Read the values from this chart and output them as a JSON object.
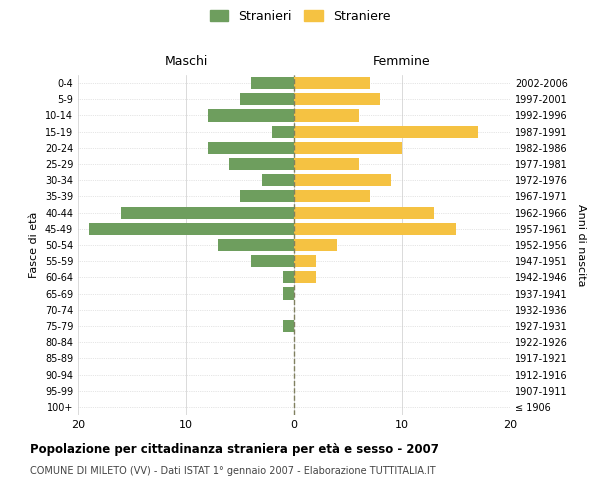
{
  "age_groups": [
    "100+",
    "95-99",
    "90-94",
    "85-89",
    "80-84",
    "75-79",
    "70-74",
    "65-69",
    "60-64",
    "55-59",
    "50-54",
    "45-49",
    "40-44",
    "35-39",
    "30-34",
    "25-29",
    "20-24",
    "15-19",
    "10-14",
    "5-9",
    "0-4"
  ],
  "birth_years": [
    "≤ 1906",
    "1907-1911",
    "1912-1916",
    "1917-1921",
    "1922-1926",
    "1927-1931",
    "1932-1936",
    "1937-1941",
    "1942-1946",
    "1947-1951",
    "1952-1956",
    "1957-1961",
    "1962-1966",
    "1967-1971",
    "1972-1976",
    "1977-1981",
    "1982-1986",
    "1987-1991",
    "1992-1996",
    "1997-2001",
    "2002-2006"
  ],
  "maschi": [
    0,
    0,
    0,
    0,
    0,
    1,
    0,
    1,
    1,
    4,
    7,
    19,
    16,
    5,
    3,
    6,
    8,
    2,
    8,
    5,
    4
  ],
  "femmine": [
    0,
    0,
    0,
    0,
    0,
    0,
    0,
    0,
    2,
    2,
    4,
    15,
    13,
    7,
    9,
    6,
    10,
    17,
    6,
    8,
    7
  ],
  "male_color": "#6e9e5e",
  "female_color": "#f5c242",
  "dashed_line_color": "#808060",
  "background_color": "#ffffff",
  "grid_color": "#cccccc",
  "title": "Popolazione per cittadinanza straniera per età e sesso - 2007",
  "subtitle": "COMUNE DI MILETO (VV) - Dati ISTAT 1° gennaio 2007 - Elaborazione TUTTITALIA.IT",
  "xlabel_left": "Maschi",
  "xlabel_right": "Femmine",
  "ylabel_left": "Fasce di età",
  "ylabel_right": "Anni di nascita",
  "legend_male": "Stranieri",
  "legend_female": "Straniere",
  "xlim": 20
}
